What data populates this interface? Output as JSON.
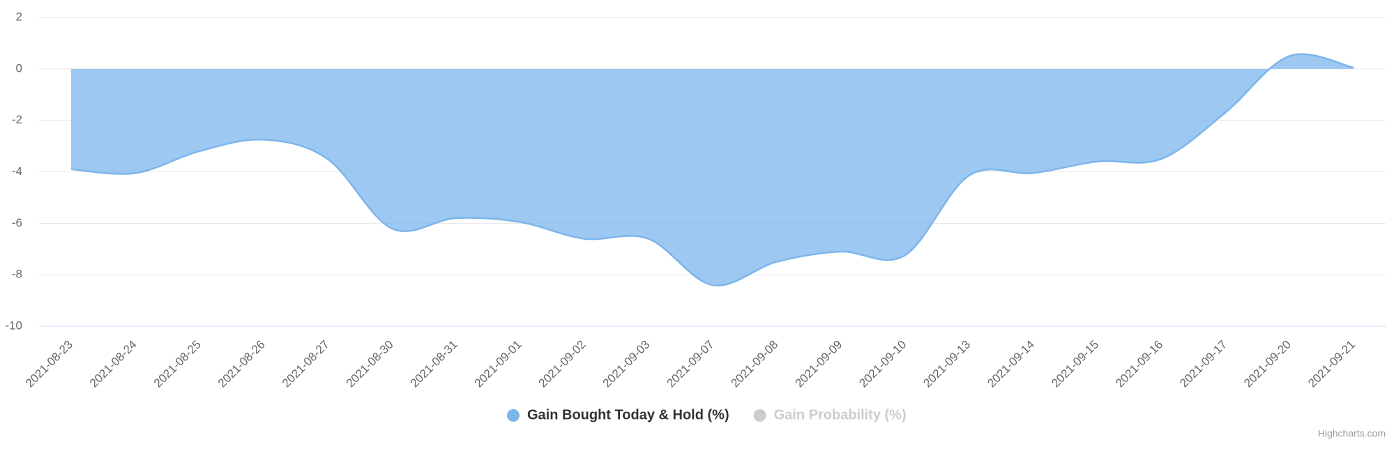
{
  "chart_data": {
    "type": "areaspline",
    "categories": [
      "2021-08-23",
      "2021-08-24",
      "2021-08-25",
      "2021-08-26",
      "2021-08-27",
      "2021-08-30",
      "2021-08-31",
      "2021-09-01",
      "2021-09-02",
      "2021-09-03",
      "2021-09-07",
      "2021-09-08",
      "2021-09-09",
      "2021-09-10",
      "2021-09-13",
      "2021-09-14",
      "2021-09-15",
      "2021-09-16",
      "2021-09-17",
      "2021-09-20",
      "2021-09-21"
    ],
    "series": [
      {
        "name": "Gain Bought Today & Hold (%)",
        "color": "#7cb5ec",
        "visible": true,
        "values": [
          -3.9,
          -4.05,
          -3.2,
          -2.75,
          -3.5,
          -6.2,
          -5.8,
          -5.95,
          -6.6,
          -6.6,
          -8.4,
          -7.5,
          -7.1,
          -7.25,
          -4.15,
          -4.05,
          -3.6,
          -3.5,
          -1.7,
          0.5,
          0.05
        ]
      },
      {
        "name": "Gain Probability (%)",
        "color": "#cccccc",
        "visible": false
      }
    ],
    "ylim": [
      -10,
      2
    ],
    "yticks": [
      -10,
      -8,
      -6,
      -4,
      -2,
      0,
      2
    ],
    "grid": true,
    "credits": "Highcharts.com"
  }
}
